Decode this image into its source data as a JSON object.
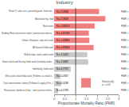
{
  "chart_data": {
    "type": "bar",
    "orientation": "horizontal",
    "title": "Industry",
    "xlabel": "Proportionate Mortality Ratio (PMR)",
    "categories": [
      "Retail Tr. sales svcs, personal goods, food stor...",
      "Manufacturing- food",
      "Real estate",
      "Building Real construction trades (construction industri...",
      "Utilities, Hospitals, radio tech work",
      "All financial fields work",
      "Skilled shop, trades and/or work",
      "Some school and Factory fields work (including trades...",
      "Indefinitely- fields work",
      "Office park school fields work, (Fulltime, as small in...",
      "Total entertainment, federal (Fulltime & supply & For...)",
      "Restaurants, barbecue & bar... and a portion streets..."
    ],
    "series": [
      {
        "name": "Statistically\np < 0.05",
        "color": "#f08080",
        "values": [
          2.0896,
          2.3828,
          1.88474,
          1.61308,
          1.6386,
          1.833,
          null,
          null,
          null,
          null,
          null,
          null
        ],
        "value_labels": [
          "N = 2.0896",
          "N = 2.3828",
          "N = 1.88474",
          "N = 1.61308",
          "N = 1.63860",
          "N = 1.83300",
          null,
          null,
          null,
          null,
          null,
          null
        ]
      },
      {
        "color": "#c8c8c8",
        "values": [
          null,
          null,
          null,
          null,
          null,
          null,
          1.5425,
          1.5867,
          0.7757,
          0.2857,
          0.3238,
          0.1783
        ],
        "value_labels": [
          null,
          null,
          null,
          null,
          null,
          null,
          "N = 1.5425",
          "N = 1.5867",
          "N = 0.7757",
          "N = 0.2857",
          "N = 0.3238",
          "N = 0.1783"
        ]
      }
    ],
    "data_labels": true,
    "annotations": [
      "PMR >",
      "PMR >",
      "PMR >",
      "PMR >",
      "PMR >",
      "PMR >",
      "PMR >",
      "PMR >",
      "PMR >",
      "PMR >",
      "PMR >",
      "PMR >"
    ],
    "reference_line": 1.0,
    "xlim": [
      0,
      3.0
    ],
    "xticks": [
      0,
      0.5,
      1,
      1.5,
      2,
      2.5,
      3
    ],
    "grid": false,
    "legend": "lower right"
  }
}
